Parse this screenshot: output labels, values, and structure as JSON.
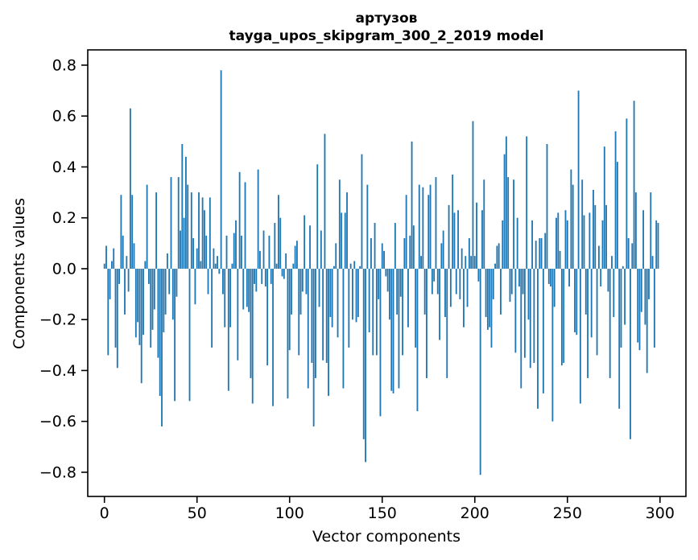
{
  "chart_data": {
    "type": "bar",
    "title": "артузов",
    "subtitle": "tayga_upos_skipgram_300_2_2019 model",
    "xlabel": "Vector components",
    "ylabel": "Components values",
    "legend": null,
    "grid": false,
    "bar_color": "#1f77b4",
    "axis_color": "#000000",
    "text_color": "#000000",
    "background_color": "#ffffff",
    "x_ticks": [
      0,
      50,
      100,
      150,
      200,
      250,
      300
    ],
    "y_ticks": [
      -0.8,
      -0.6,
      -0.4,
      -0.2,
      0.0,
      0.2,
      0.4,
      0.6,
      0.8
    ],
    "xlim": [
      -9,
      314
    ],
    "ylim": [
      -0.895,
      0.86
    ],
    "x_start_index": 0,
    "values": [
      0.02,
      0.09,
      -0.34,
      -0.12,
      0.03,
      0.08,
      -0.31,
      -0.39,
      -0.06,
      0.29,
      0.13,
      -0.18,
      0.05,
      -0.09,
      0.63,
      0.29,
      0.1,
      -0.27,
      -0.21,
      -0.3,
      -0.45,
      -0.26,
      0.03,
      0.33,
      -0.06,
      -0.31,
      -0.24,
      -0.16,
      0.3,
      -0.35,
      -0.5,
      -0.62,
      -0.25,
      -0.18,
      0.06,
      -0.1,
      0.36,
      -0.2,
      -0.52,
      -0.11,
      0.36,
      0.15,
      0.49,
      0.2,
      0.44,
      0.33,
      -0.52,
      0.3,
      0.12,
      -0.14,
      0.08,
      0.3,
      0.03,
      0.28,
      0.23,
      0.13,
      -0.1,
      0.28,
      -0.31,
      0.08,
      0.02,
      0.05,
      -0.02,
      0.78,
      -0.1,
      -0.23,
      0.13,
      -0.48,
      -0.23,
      0.02,
      0.14,
      0.19,
      -0.36,
      0.38,
      0.13,
      -0.16,
      0.34,
      -0.15,
      -0.17,
      -0.43,
      -0.53,
      -0.06,
      -0.09,
      0.39,
      0.07,
      -0.06,
      0.15,
      -0.07,
      -0.38,
      0.13,
      -0.06,
      -0.54,
      0.18,
      0.02,
      0.29,
      0.2,
      -0.03,
      -0.04,
      0.06,
      -0.51,
      -0.32,
      -0.18,
      0.02,
      0.09,
      0.11,
      -0.34,
      -0.18,
      -0.09,
      0.21,
      -0.1,
      -0.47,
      0.17,
      -0.37,
      -0.62,
      -0.43,
      0.41,
      -0.15,
      0.15,
      -0.36,
      0.53,
      -0.37,
      -0.5,
      -0.19,
      -0.23,
      0.01,
      0.1,
      -0.27,
      0.35,
      0.22,
      -0.47,
      0.22,
      0.3,
      -0.31,
      0.02,
      -0.2,
      0.03,
      -0.21,
      -0.19,
      0.01,
      0.45,
      -0.67,
      -0.76,
      0.33,
      -0.25,
      0.12,
      -0.34,
      0.18,
      -0.34,
      -0.12,
      -0.58,
      0.1,
      0.07,
      -0.03,
      -0.09,
      -0.2,
      -0.48,
      -0.49,
      0.18,
      -0.18,
      -0.47,
      -0.11,
      -0.34,
      0.12,
      0.29,
      -0.23,
      0.13,
      0.5,
      0.17,
      -0.31,
      -0.56,
      0.33,
      0.05,
      0.32,
      -0.18,
      -0.43,
      0.29,
      0.33,
      -0.1,
      -0.05,
      0.36,
      -0.1,
      -0.28,
      0.1,
      0.15,
      -0.19,
      -0.43,
      0.25,
      -0.15,
      0.37,
      0.22,
      -0.1,
      0.23,
      -0.12,
      0.08,
      -0.23,
      0.05,
      -0.15,
      0.12,
      0.05,
      0.58,
      0.05,
      0.26,
      -0.05,
      -0.81,
      0.23,
      0.35,
      -0.19,
      -0.24,
      -0.23,
      -0.31,
      -0.12,
      0.02,
      0.09,
      0.1,
      -0.18,
      0.19,
      0.45,
      0.52,
      0.36,
      -0.13,
      -0.1,
      0.35,
      -0.33,
      0.2,
      -0.07,
      -0.47,
      -0.1,
      -0.35,
      0.52,
      -0.2,
      -0.39,
      0.19,
      -0.37,
      0.11,
      -0.55,
      0.12,
      0.12,
      -0.49,
      0.14,
      0.49,
      -0.06,
      -0.07,
      -0.6,
      -0.15,
      0.2,
      0.22,
      0.07,
      -0.38,
      -0.37,
      0.23,
      0.19,
      -0.07,
      0.39,
      0.33,
      -0.25,
      -0.26,
      0.7,
      -0.53,
      0.35,
      0.21,
      -0.18,
      -0.43,
      0.22,
      -0.27,
      0.31,
      0.25,
      -0.34,
      0.09,
      -0.07,
      0.19,
      0.48,
      0.25,
      -0.09,
      -0.43,
      0.05,
      -0.19,
      0.54,
      0.42,
      -0.55,
      -0.31,
      0.01,
      -0.22,
      0.59,
      0.12,
      -0.67,
      0.1,
      0.66,
      0.3,
      -0.29,
      -0.32,
      -0.17,
      0.23,
      -0.22,
      -0.41,
      -0.12,
      0.3,
      0.05,
      -0.31,
      0.19,
      0.18
    ]
  }
}
